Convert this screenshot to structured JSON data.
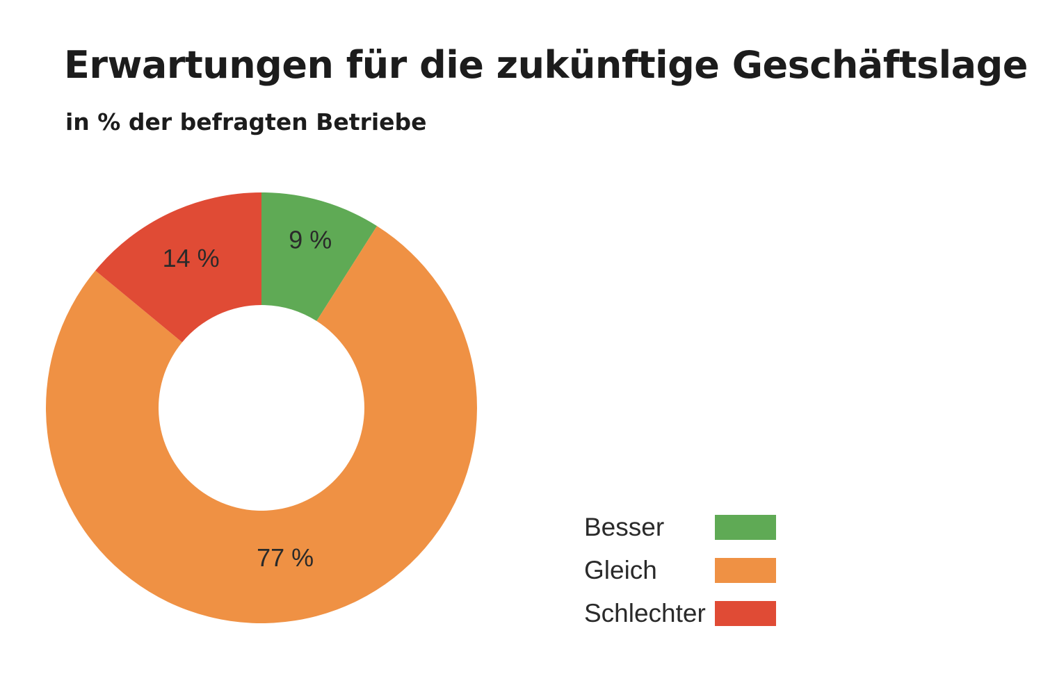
{
  "chart_data": {
    "type": "pie",
    "title": "Erwartungen für die zukünftige Geschäftslage",
    "subtitle": "in % der befragten Betriebe",
    "donut": true,
    "categories": [
      "Besser",
      "Gleich",
      "Schlechter"
    ],
    "values": [
      9,
      77,
      14
    ],
    "labels": [
      "9 %",
      "77 %",
      "14 %"
    ],
    "colors": [
      "#5faa55",
      "#ef9144",
      "#e04b35"
    ],
    "legend_position": "bottom-right"
  }
}
